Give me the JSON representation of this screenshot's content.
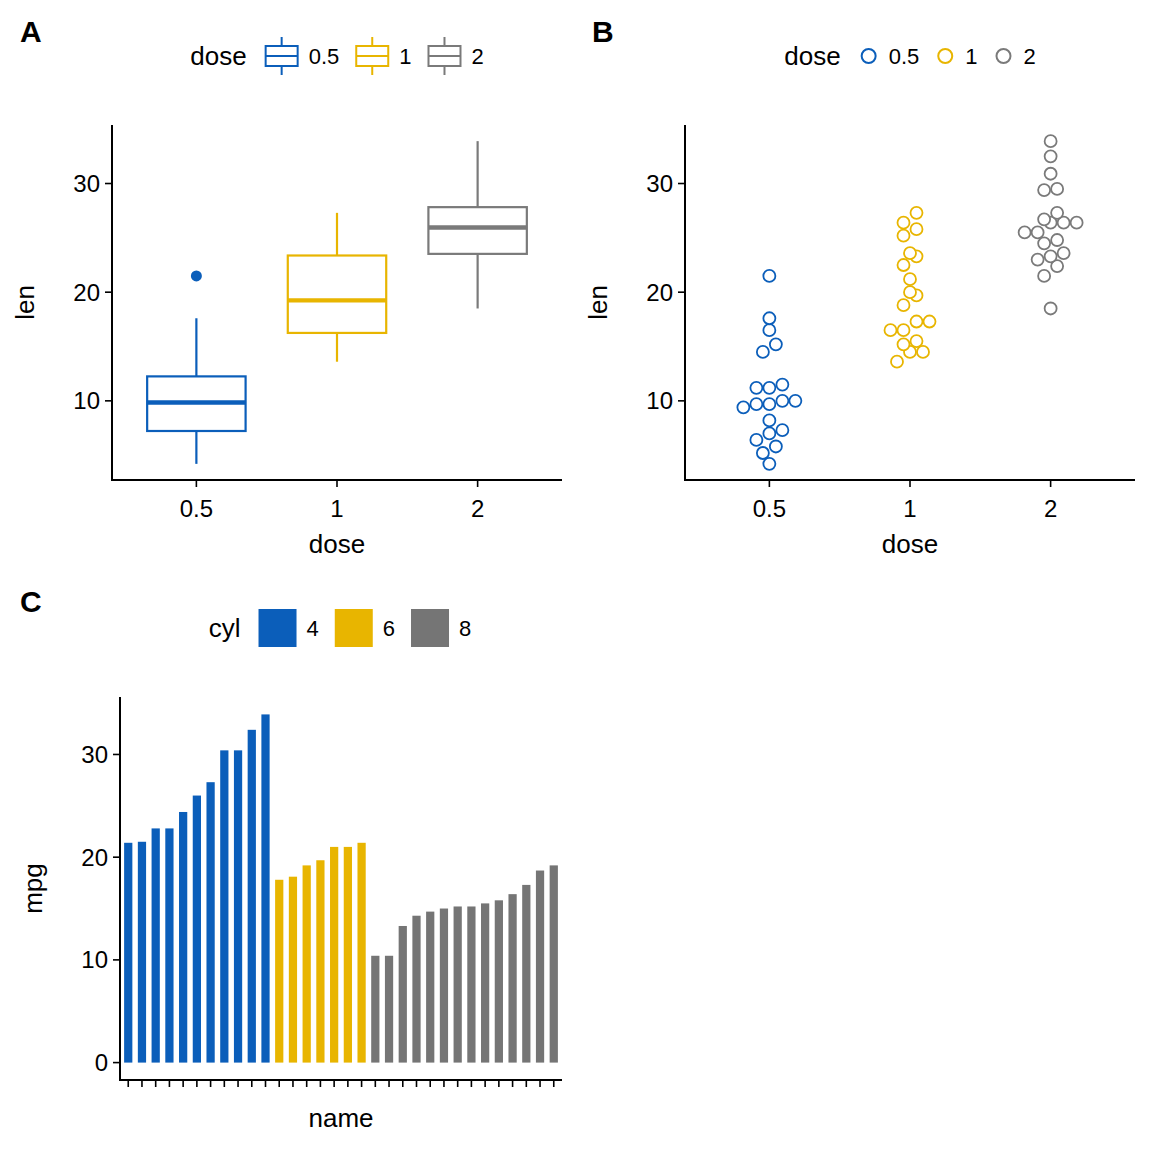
{
  "chart_data": [
    {
      "type": "box",
      "title": "A",
      "x_label": "dose",
      "y_label": "len",
      "legend_title": "dose",
      "categories": [
        "0.5",
        "1",
        "2"
      ],
      "colors": [
        "#0B5EBA",
        "#E8B500",
        "#7A7A7A"
      ],
      "boxes": [
        {
          "low": 4.2,
          "q1": 7.225,
          "median": 9.85,
          "q3": 12.25,
          "high": 17.6,
          "outliers": [
            21.5
          ]
        },
        {
          "low": 13.6,
          "q1": 16.25,
          "median": 19.25,
          "q3": 23.375,
          "high": 27.3,
          "outliers": []
        },
        {
          "low": 18.5,
          "q1": 23.525,
          "median": 25.95,
          "q3": 27.825,
          "high": 33.9,
          "outliers": []
        }
      ],
      "ylim": [
        2.715,
        35.385
      ],
      "yticks": [
        10,
        20,
        30
      ],
      "legend": "top"
    },
    {
      "type": "dot",
      "title": "B",
      "x_label": "dose",
      "y_label": "len",
      "legend_title": "dose",
      "categories": [
        "0.5",
        "1",
        "2"
      ],
      "colors": [
        "#0B5EBA",
        "#E8B500",
        "#7A7A7A"
      ],
      "values": [
        [
          4.2,
          11.5,
          7.3,
          5.8,
          6.4,
          10,
          11.2,
          11.2,
          5.2,
          7,
          15.2,
          21.5,
          17.6,
          9.7,
          14.5,
          10,
          8.2,
          9.4,
          16.5,
          9.7
        ],
        [
          16.5,
          16.5,
          15.2,
          17.3,
          22.5,
          17.3,
          13.6,
          14.5,
          18.8,
          15.5,
          19.7,
          23.3,
          23.6,
          26.4,
          20,
          25.2,
          25.8,
          21.2,
          14.5,
          27.3
        ],
        [
          23.6,
          18.5,
          33.9,
          25.5,
          26.4,
          32.5,
          26.7,
          21.5,
          23.3,
          29.5,
          25.5,
          26.4,
          22.4,
          24.5,
          24.8,
          30.9,
          26.4,
          27.3,
          29.4,
          23
        ]
      ],
      "ylim": [
        2.715,
        35.385
      ],
      "yticks": [
        10,
        20,
        30
      ],
      "legend": "top"
    },
    {
      "type": "bar",
      "title": "C",
      "x_label": "name",
      "y_label": "mpg",
      "legend_title": "cyl",
      "categories": [
        null,
        null,
        null,
        null,
        null,
        null,
        null,
        null,
        null,
        null,
        null,
        null,
        null,
        null,
        null,
        null,
        null,
        null,
        null,
        null,
        null,
        null,
        null,
        null,
        null,
        null,
        null,
        null,
        null,
        null,
        null,
        null
      ],
      "series": [
        {
          "name": "4",
          "color": "#0B5EBA",
          "values": [
            21.4,
            21.5,
            22.8,
            22.8,
            24.4,
            26.0,
            27.3,
            30.4,
            30.4,
            32.4,
            33.9,
            null,
            null,
            null,
            null,
            null,
            null,
            null,
            null,
            null,
            null,
            null,
            null,
            null,
            null,
            null,
            null,
            null,
            null,
            null,
            null,
            null
          ]
        },
        {
          "name": "6",
          "color": "#E8B500",
          "values": [
            null,
            null,
            null,
            null,
            null,
            null,
            null,
            null,
            null,
            null,
            null,
            17.8,
            18.1,
            19.2,
            19.7,
            21.0,
            21.0,
            21.4,
            null,
            null,
            null,
            null,
            null,
            null,
            null,
            null,
            null,
            null,
            null,
            null,
            null,
            null
          ]
        },
        {
          "name": "8",
          "color": "#757575",
          "values": [
            null,
            null,
            null,
            null,
            null,
            null,
            null,
            null,
            null,
            null,
            null,
            null,
            null,
            null,
            null,
            null,
            null,
            null,
            10.4,
            10.4,
            13.3,
            14.3,
            14.7,
            15.0,
            15.2,
            15.2,
            15.5,
            15.8,
            16.4,
            17.3,
            18.7,
            19.2
          ]
        }
      ],
      "ylim": [
        -1.695,
        35.595
      ],
      "yticks": [
        0,
        10,
        20,
        30
      ],
      "legend": "top"
    }
  ]
}
